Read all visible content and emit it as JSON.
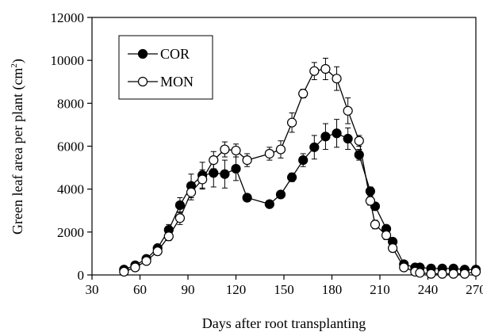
{
  "chart_data": {
    "type": "line",
    "xlabel": "Days after root transplanting",
    "ylabel_main": "Green leaf  area per plant (cm",
    "ylabel_sup": "2",
    "ylabel_end": ")",
    "xlim": [
      30,
      270
    ],
    "ylim": [
      0,
      12000
    ],
    "xticks": [
      30,
      60,
      90,
      120,
      150,
      180,
      210,
      240,
      270
    ],
    "yticks": [
      0,
      2000,
      4000,
      6000,
      8000,
      10000,
      12000
    ],
    "grid": false,
    "legend_position": "top-left",
    "series": [
      {
        "name": "COR",
        "marker": "filled-circle",
        "color": "#000000",
        "x": [
          50,
          57,
          64,
          71,
          78,
          85,
          92,
          99,
          106,
          113,
          120,
          127,
          141,
          148,
          155,
          162,
          169,
          176,
          183,
          190,
          197,
          204,
          207,
          214,
          218,
          225,
          232,
          235,
          242,
          249,
          256,
          263,
          270
        ],
        "y": [
          250,
          450,
          750,
          1250,
          2100,
          3250,
          4150,
          4650,
          4750,
          4700,
          4950,
          3600,
          3300,
          3750,
          4550,
          5350,
          5950,
          6450,
          6600,
          6350,
          5600,
          3900,
          3200,
          2150,
          1550,
          500,
          350,
          350,
          300,
          300,
          300,
          250,
          250
        ],
        "err": [
          80,
          100,
          120,
          150,
          250,
          350,
          550,
          600,
          650,
          650,
          550,
          150,
          100,
          150,
          200,
          300,
          550,
          600,
          650,
          500,
          250,
          200,
          150,
          150,
          150,
          50,
          50,
          50,
          50,
          50,
          50,
          50,
          50
        ]
      },
      {
        "name": "MON",
        "marker": "open-circle",
        "color": "#000000",
        "x": [
          50,
          57,
          64,
          71,
          78,
          85,
          92,
          99,
          106,
          113,
          120,
          127,
          141,
          148,
          155,
          162,
          169,
          176,
          183,
          190,
          197,
          204,
          207,
          214,
          218,
          225,
          232,
          235,
          242,
          249,
          256,
          263,
          270
        ],
        "y": [
          150,
          350,
          650,
          1100,
          1800,
          2650,
          3850,
          4450,
          5350,
          5850,
          5800,
          5350,
          5650,
          5850,
          7100,
          8450,
          9500,
          9600,
          9150,
          7650,
          6250,
          3450,
          2350,
          1850,
          1250,
          350,
          150,
          100,
          50,
          50,
          50,
          50,
          150
        ],
        "err": [
          60,
          80,
          100,
          150,
          200,
          300,
          350,
          450,
          400,
          350,
          300,
          300,
          300,
          400,
          450,
          200,
          400,
          500,
          550,
          600,
          250,
          200,
          200,
          200,
          150,
          50,
          50,
          50,
          50,
          50,
          50,
          50,
          50
        ]
      }
    ]
  }
}
